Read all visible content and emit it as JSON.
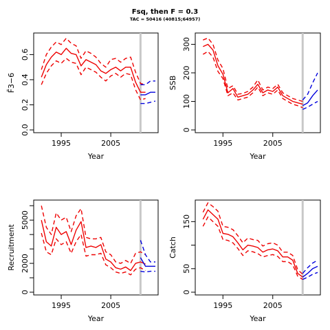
{
  "title": "Fsq, then F = 0.3",
  "subtitle": "TAC = 50416 (40815;64957)",
  "colors": {
    "historic": "#ee0000",
    "projection": "#0000dd",
    "marker": "#c8c8c8"
  },
  "chart_data": [
    {
      "type": "line",
      "ylabel": "F̄3−6",
      "xlabel": "Year",
      "xlim": [
        1990,
        2014
      ],
      "ylim": [
        0,
        0.75
      ],
      "yticks": [
        {
          "v": 0.0,
          "label": "0.0"
        },
        {
          "v": 0.2,
          "label": "0.2"
        },
        {
          "v": 0.4,
          "label": "0.4"
        },
        {
          "v": 0.6,
          "label": "0.6"
        }
      ],
      "xticks": [
        {
          "v": 1995,
          "label": "1995"
        },
        {
          "v": 2005,
          "label": "2005"
        }
      ],
      "vline": 2011,
      "historic": {
        "x": [
          1991,
          1992,
          1993,
          1994,
          1995,
          1996,
          1997,
          1998,
          1999,
          2000,
          2001,
          2002,
          2003,
          2004,
          2005,
          2006,
          2007,
          2008,
          2009,
          2010,
          2011,
          2012
        ],
        "median": [
          0.42,
          0.52,
          0.58,
          0.62,
          0.6,
          0.65,
          0.61,
          0.6,
          0.51,
          0.56,
          0.54,
          0.52,
          0.47,
          0.45,
          0.48,
          0.5,
          0.47,
          0.5,
          0.5,
          0.38,
          0.3,
          0.3
        ],
        "upper": [
          0.48,
          0.6,
          0.66,
          0.7,
          0.68,
          0.73,
          0.69,
          0.67,
          0.57,
          0.63,
          0.61,
          0.58,
          0.53,
          0.5,
          0.56,
          0.57,
          0.54,
          0.57,
          0.58,
          0.46,
          0.37,
          0.36
        ],
        "lower": [
          0.36,
          0.45,
          0.51,
          0.55,
          0.53,
          0.57,
          0.54,
          0.53,
          0.44,
          0.5,
          0.48,
          0.46,
          0.42,
          0.39,
          0.43,
          0.45,
          0.42,
          0.45,
          0.44,
          0.32,
          0.24,
          0.25
        ]
      },
      "projection": {
        "x": [
          2011,
          2012,
          2013,
          2014
        ],
        "median": [
          0.28,
          0.28,
          0.3,
          0.3
        ],
        "upper": [
          0.36,
          0.36,
          0.39,
          0.39
        ],
        "lower": [
          0.21,
          0.21,
          0.22,
          0.23
        ]
      }
    },
    {
      "type": "line",
      "ylabel": "SSB",
      "xlabel": "Year",
      "xlim": [
        1990,
        2014
      ],
      "ylim": [
        0,
        330
      ],
      "yticks": [
        {
          "v": 0,
          "label": "0"
        },
        {
          "v": 100,
          "label": "100"
        },
        {
          "v": 200,
          "label": "200"
        },
        {
          "v": 300,
          "label": "300"
        }
      ],
      "xticks": [
        {
          "v": 1995,
          "label": "1995"
        },
        {
          "v": 2005,
          "label": "2005"
        }
      ],
      "vline": 2011,
      "historic": {
        "x": [
          1991,
          1992,
          1993,
          1994,
          1995,
          1996,
          1997,
          1998,
          1999,
          2000,
          2001,
          2002,
          2003,
          2004,
          2005,
          2006,
          2007,
          2008,
          2009,
          2010,
          2011
        ],
        "median": [
          292,
          300,
          280,
          225,
          195,
          130,
          145,
          115,
          120,
          125,
          140,
          160,
          130,
          140,
          135,
          150,
          120,
          110,
          100,
          95,
          90
        ],
        "upper": [
          315,
          322,
          300,
          245,
          215,
          145,
          155,
          125,
          128,
          135,
          150,
          175,
          140,
          150,
          145,
          160,
          130,
          120,
          110,
          105,
          100
        ],
        "lower": [
          265,
          275,
          255,
          205,
          180,
          120,
          130,
          105,
          110,
          115,
          130,
          150,
          120,
          130,
          125,
          140,
          110,
          100,
          90,
          85,
          78
        ]
      },
      "projection": {
        "x": [
          2011,
          2012,
          2013,
          2014
        ],
        "median": [
          85,
          95,
          120,
          140
        ],
        "upper": [
          105,
          125,
          165,
          200
        ],
        "lower": [
          72,
          80,
          90,
          100
        ]
      }
    },
    {
      "type": "line",
      "ylabel": "Recruitment",
      "xlabel": "Year",
      "xlim": [
        1990,
        2014
      ],
      "ylim": [
        0,
        6200
      ],
      "yticks": [
        {
          "v": 0,
          "label": "0"
        },
        {
          "v": 2000,
          "label": "2000"
        },
        {
          "v": 5000,
          "label": "5000"
        }
      ],
      "yminor": [
        1000,
        3000,
        4000,
        6000
      ],
      "xticks": [
        {
          "v": 1995,
          "label": "1995"
        },
        {
          "v": 2005,
          "label": "2005"
        }
      ],
      "vline": 2011,
      "historic": {
        "x": [
          1991,
          1992,
          1993,
          1994,
          1995,
          1996,
          1997,
          1998,
          1999,
          2000,
          2001,
          2002,
          2003,
          2004,
          2005,
          2006,
          2007,
          2008,
          2009,
          2010,
          2011,
          2012
        ],
        "median": [
          5000,
          3500,
          3200,
          4500,
          4000,
          4200,
          3300,
          4300,
          4900,
          3100,
          3200,
          3100,
          3300,
          2300,
          2100,
          1700,
          1600,
          1750,
          1500,
          2000,
          2100,
          1950
        ],
        "upper": [
          6000,
          4500,
          4000,
          5500,
          5000,
          5200,
          4200,
          5300,
          5800,
          3800,
          3700,
          3700,
          3800,
          2800,
          2600,
          2100,
          2000,
          2200,
          2000,
          2700,
          2800,
          2600
        ],
        "lower": [
          4100,
          2800,
          2600,
          3700,
          3300,
          3500,
          2700,
          3500,
          4000,
          2500,
          2600,
          2600,
          2700,
          1900,
          1700,
          1400,
          1300,
          1400,
          1200,
          1600,
          1700,
          1500
        ]
      },
      "projection": {
        "x": [
          2011,
          2012,
          2013,
          2014
        ],
        "median": [
          2400,
          1800,
          1800,
          1800
        ],
        "upper": [
          3600,
          2600,
          2100,
          2100
        ],
        "lower": [
          1450,
          1400,
          1450,
          1450
        ]
      }
    },
    {
      "type": "line",
      "ylabel": "Catch",
      "xlabel": "Year",
      "xlim": [
        1990,
        2014
      ],
      "ylim": [
        0,
        190
      ],
      "yticks": [
        {
          "v": 0,
          "label": "0"
        },
        {
          "v": 50,
          "label": "50"
        },
        {
          "v": 150,
          "label": "150"
        }
      ],
      "yminor": [
        100
      ],
      "xticks": [
        {
          "v": 1995,
          "label": "1995"
        },
        {
          "v": 2005,
          "label": "2005"
        }
      ],
      "vline": 2011,
      "historic": {
        "x": [
          1991,
          1992,
          1993,
          1994,
          1995,
          1996,
          1997,
          1998,
          1999,
          2000,
          2001,
          2002,
          2003,
          2004,
          2005,
          2006,
          2007,
          2008,
          2009,
          2010,
          2011
        ],
        "median": [
          155,
          175,
          165,
          155,
          125,
          123,
          118,
          105,
          90,
          100,
          98,
          95,
          85,
          90,
          92,
          88,
          75,
          75,
          68,
          40,
          32
        ],
        "upper": [
          170,
          190,
          182,
          172,
          140,
          138,
          133,
          120,
          105,
          115,
          112,
          110,
          98,
          103,
          105,
          100,
          85,
          85,
          78,
          48,
          38
        ],
        "lower": [
          140,
          160,
          150,
          140,
          112,
          110,
          105,
          93,
          78,
          88,
          86,
          82,
          75,
          78,
          80,
          76,
          65,
          65,
          58,
          34,
          27
        ]
      },
      "projection": {
        "x": [
          2011,
          2012,
          2013,
          2014
        ],
        "median": [
          32,
          40,
          50,
          55
        ],
        "upper": [
          40,
          52,
          62,
          68
        ],
        "lower": [
          27,
          32,
          38,
          42
        ]
      }
    }
  ]
}
